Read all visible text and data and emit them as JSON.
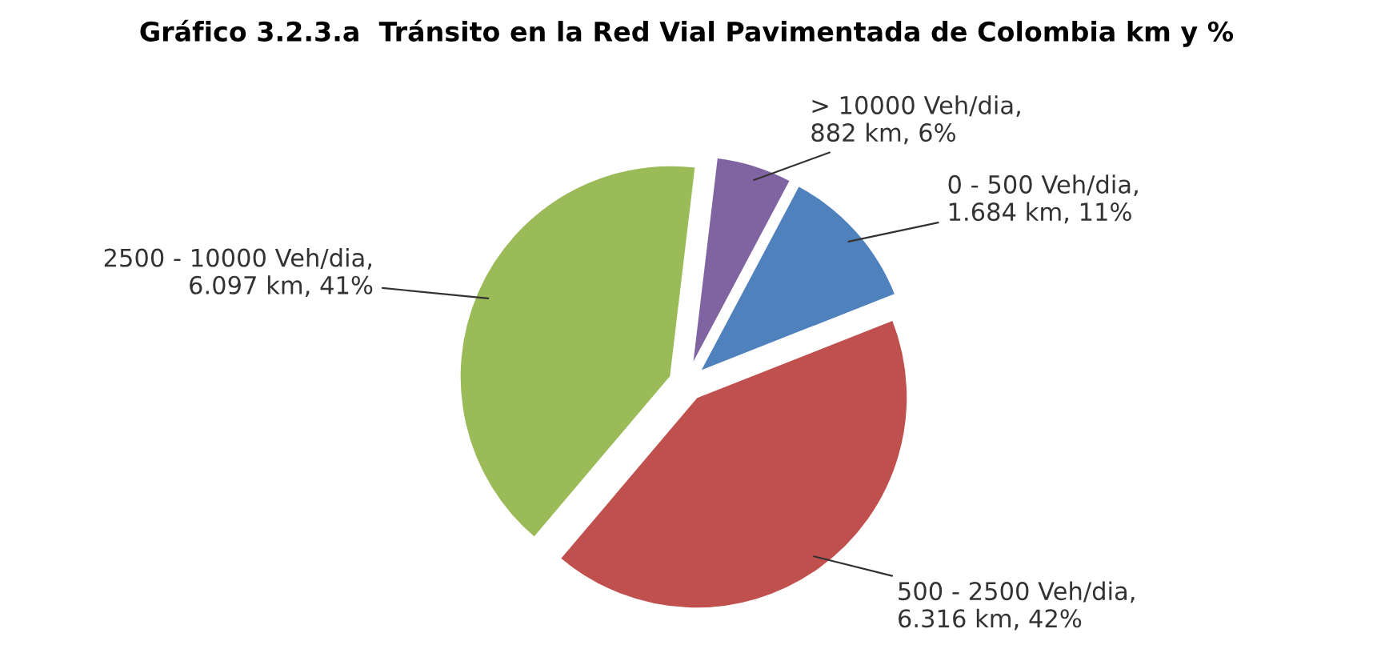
{
  "chart_data": {
    "type": "pie",
    "title": "Gráfico 3.2.3.a  Tránsito en la Red Vial Pavimentada de Colombia km y %",
    "categories": [
      "0 - 500 Veh/dia",
      "500 - 2500 Veh/dia",
      "2500 - 10000 Veh/dia",
      "> 10000 Veh/dia"
    ],
    "values": [
      1684,
      6316,
      6097,
      882
    ],
    "value_labels": [
      ", 1.684 km, 11%",
      ", 6.316 km, 42%",
      ", 6.097 km, 41%",
      ", 882 km, 6%"
    ],
    "colors": [
      "#4f81bd",
      "#c0504d",
      "#9bbb59",
      "#8064a2"
    ],
    "legend": false
  }
}
